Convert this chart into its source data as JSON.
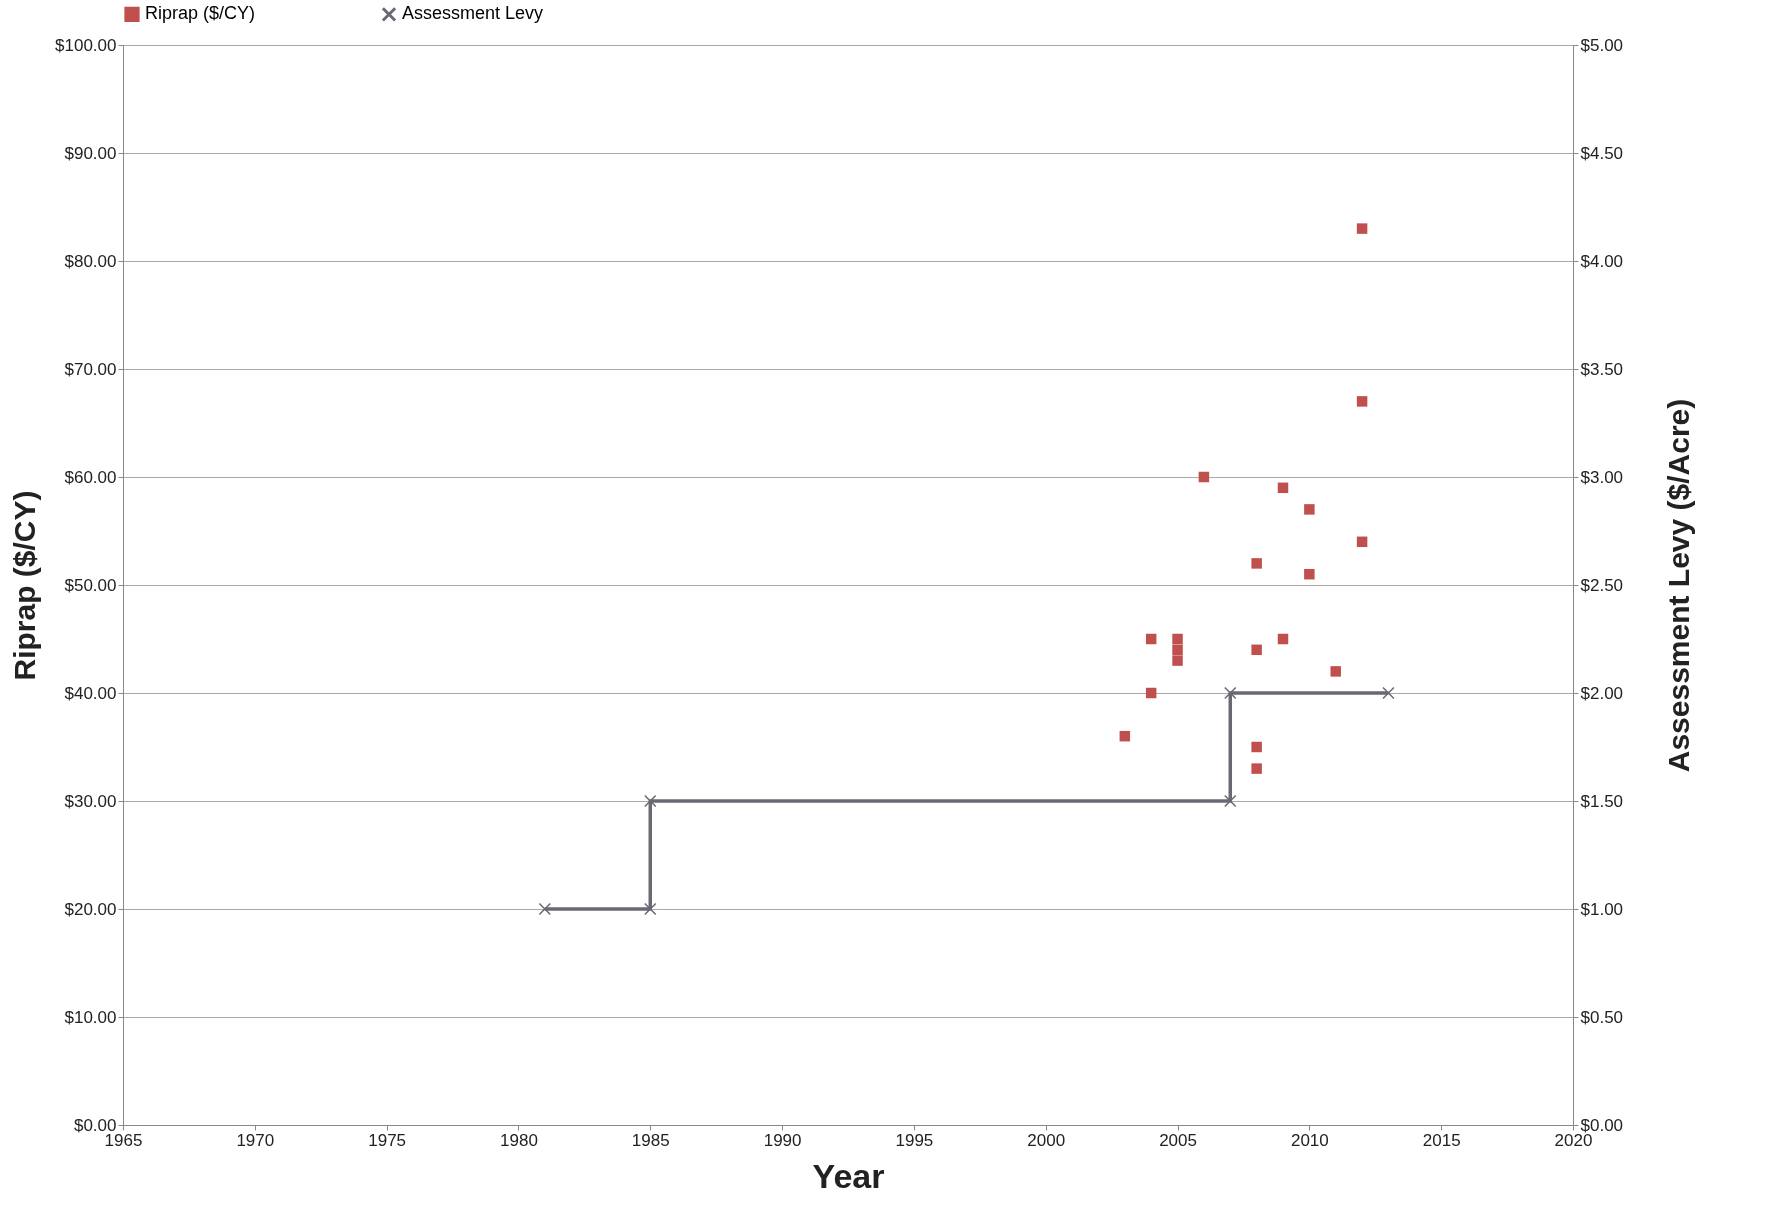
{
  "chart_data": {
    "type": "scatter",
    "xlabel": "Year",
    "ylabel": "Riprap ($/CY)",
    "y2label": "Assessment Levy ($/Acre)",
    "legend": "top",
    "grid": "y",
    "xlim": [
      1965,
      2020
    ],
    "xticks": [
      1965,
      1970,
      1975,
      1980,
      1985,
      1990,
      1995,
      2000,
      2005,
      2010,
      2015,
      2020
    ],
    "ylim": [
      0,
      100
    ],
    "yticks": [
      {
        "value": 0,
        "label": "$0.00"
      },
      {
        "value": 10,
        "label": "$10.00"
      },
      {
        "value": 20,
        "label": "$20.00"
      },
      {
        "value": 30,
        "label": "$30.00"
      },
      {
        "value": 40,
        "label": "$40.00"
      },
      {
        "value": 50,
        "label": "$50.00"
      },
      {
        "value": 60,
        "label": "$60.00"
      },
      {
        "value": 70,
        "label": "$70.00"
      },
      {
        "value": 80,
        "label": "$80.00"
      },
      {
        "value": 90,
        "label": "$90.00"
      },
      {
        "value": 100,
        "label": "$100.00"
      }
    ],
    "y2lim": [
      0,
      5
    ],
    "y2ticks": [
      {
        "value": 0,
        "label": "$0.00"
      },
      {
        "value": 0.5,
        "label": "$0.50"
      },
      {
        "value": 1,
        "label": "$1.00"
      },
      {
        "value": 1.5,
        "label": "$1.50"
      },
      {
        "value": 2,
        "label": "$2.00"
      },
      {
        "value": 2.5,
        "label": "$2.50"
      },
      {
        "value": 3,
        "label": "$3.00"
      },
      {
        "value": 3.5,
        "label": "$3.50"
      },
      {
        "value": 4,
        "label": "$4.00"
      },
      {
        "value": 4.5,
        "label": "$4.50"
      },
      {
        "value": 5,
        "label": "$5.00"
      }
    ],
    "series": [
      {
        "name": "Riprap ($/CY)",
        "marker": "square",
        "color": "#c0504d",
        "x": [
          2003,
          2004,
          2004,
          2005,
          2005,
          2005,
          2006,
          2008,
          2008,
          2008,
          2008,
          2009,
          2009,
          2010,
          2010,
          2011,
          2012,
          2012,
          2012
        ],
        "values": [
          36,
          45,
          40,
          45,
          44,
          43,
          60,
          52,
          44,
          35,
          33,
          59,
          45,
          57,
          51,
          42,
          83,
          67,
          54
        ]
      },
      {
        "name": "Assessment Levy",
        "type": "line",
        "axis": "y2",
        "marker": "cross",
        "line_style": "solid",
        "color": "#6b6873",
        "x": [
          1981,
          1985,
          1985,
          2007,
          2007,
          2013
        ],
        "values": [
          1,
          1,
          1.5,
          1.5,
          2,
          2
        ]
      }
    ]
  }
}
